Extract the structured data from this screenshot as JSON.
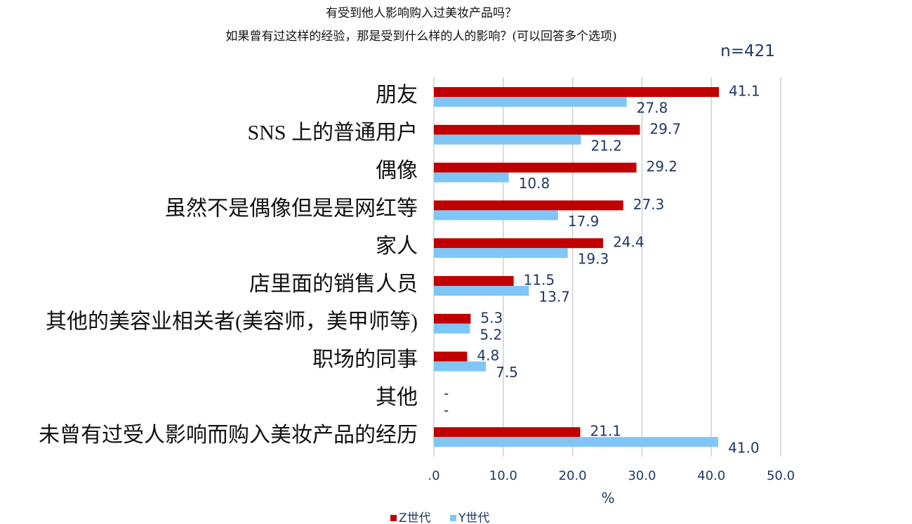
{
  "chart_data": {
    "type": "bar",
    "orientation": "horizontal",
    "title": "有受到他人影响购入过美妆产品吗？",
    "subtitle": "如果曾有过这样的经验，那是受到什么样的人的影响？(可以回答多个选项)",
    "annotation": "n=421",
    "xlabel": "%",
    "categories": [
      "朋友",
      "SNS 上的普通用户",
      "偶像",
      "虽然不是偶像但是是网红等",
      "家人",
      "店里面的销售人员",
      "其他的美容业相关者(美容师，美甲师等)",
      "职场的同事",
      "其他",
      "未曾有过受人影响而购入美妆产品的经历"
    ],
    "series": [
      {
        "name": "Z世代",
        "color": "#c00000",
        "values": [
          41.1,
          29.7,
          29.2,
          27.3,
          24.4,
          11.5,
          5.3,
          4.8,
          0,
          21.1
        ],
        "value_labels": [
          "41.1",
          "29.7",
          "29.2",
          "27.3",
          "24.4",
          "11.5",
          "5.3",
          "4.8",
          "-",
          "21.1"
        ]
      },
      {
        "name": "Y世代",
        "color": "#7fc6f7",
        "values": [
          27.8,
          21.2,
          10.8,
          17.9,
          19.3,
          13.7,
          5.2,
          7.5,
          0,
          41.0
        ],
        "value_labels": [
          "27.8",
          "21.2",
          "10.8",
          "17.9",
          "19.3",
          "13.7",
          "5.2",
          "7.5",
          "-",
          "41.0"
        ]
      }
    ],
    "xlim": [
      0,
      50
    ],
    "xticks": [
      {
        "value": 0,
        "label": ".0"
      },
      {
        "value": 10,
        "label": "10.0"
      },
      {
        "value": 20,
        "label": "20.0"
      },
      {
        "value": 30,
        "label": "30.0"
      },
      {
        "value": 40,
        "label": "40.0"
      },
      {
        "value": 50,
        "label": "50.0"
      }
    ],
    "grid": true,
    "legend": "bottom"
  }
}
